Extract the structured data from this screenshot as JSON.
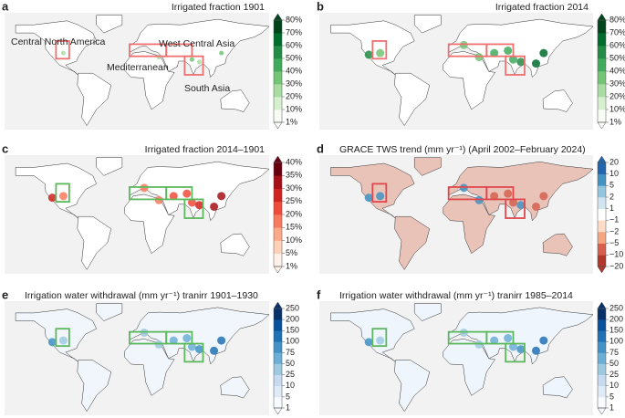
{
  "panels": [
    {
      "letter": "a",
      "title": "Irrigated fraction 1901",
      "colorbar": [
        "80%",
        "70%",
        "60%",
        "50%",
        "40%",
        "30%",
        "20%",
        "10%",
        "1%"
      ],
      "labels": [
        "Central North America",
        "West Central Asia",
        "Mediterranean",
        "South Asia"
      ]
    },
    {
      "letter": "b",
      "title": "Irrigated fraction 2014",
      "colorbar": [
        "80%",
        "70%",
        "60%",
        "50%",
        "40%",
        "30%",
        "20%",
        "10%",
        "1%"
      ]
    },
    {
      "letter": "c",
      "title": "Irrigated fraction 2014–1901",
      "colorbar": [
        "40%",
        "35%",
        "30%",
        "25%",
        "20%",
        "15%",
        "10%",
        "5%",
        "1%"
      ]
    },
    {
      "letter": "d",
      "title": "GRACE TWS trend (mm yr⁻¹) (April 2002–February 2024)",
      "colorbar": [
        "20",
        "10",
        "5",
        "2",
        "1",
        "−1",
        "−2",
        "−5",
        "−10",
        "−20"
      ]
    },
    {
      "letter": "e",
      "title": "Irrigation water withdrawal (mm yr⁻¹) tranirr 1901–1930",
      "colorbar": [
        "250",
        "200",
        "150",
        "100",
        "75",
        "50",
        "25",
        "10",
        "5",
        "1"
      ]
    },
    {
      "letter": "f",
      "title": "Irrigation water withdrawal (mm yr⁻¹) tranirr 1985–2014",
      "colorbar": [
        "250",
        "200",
        "150",
        "100",
        "75",
        "50",
        "25",
        "10",
        "5",
        "1"
      ]
    }
  ]
}
